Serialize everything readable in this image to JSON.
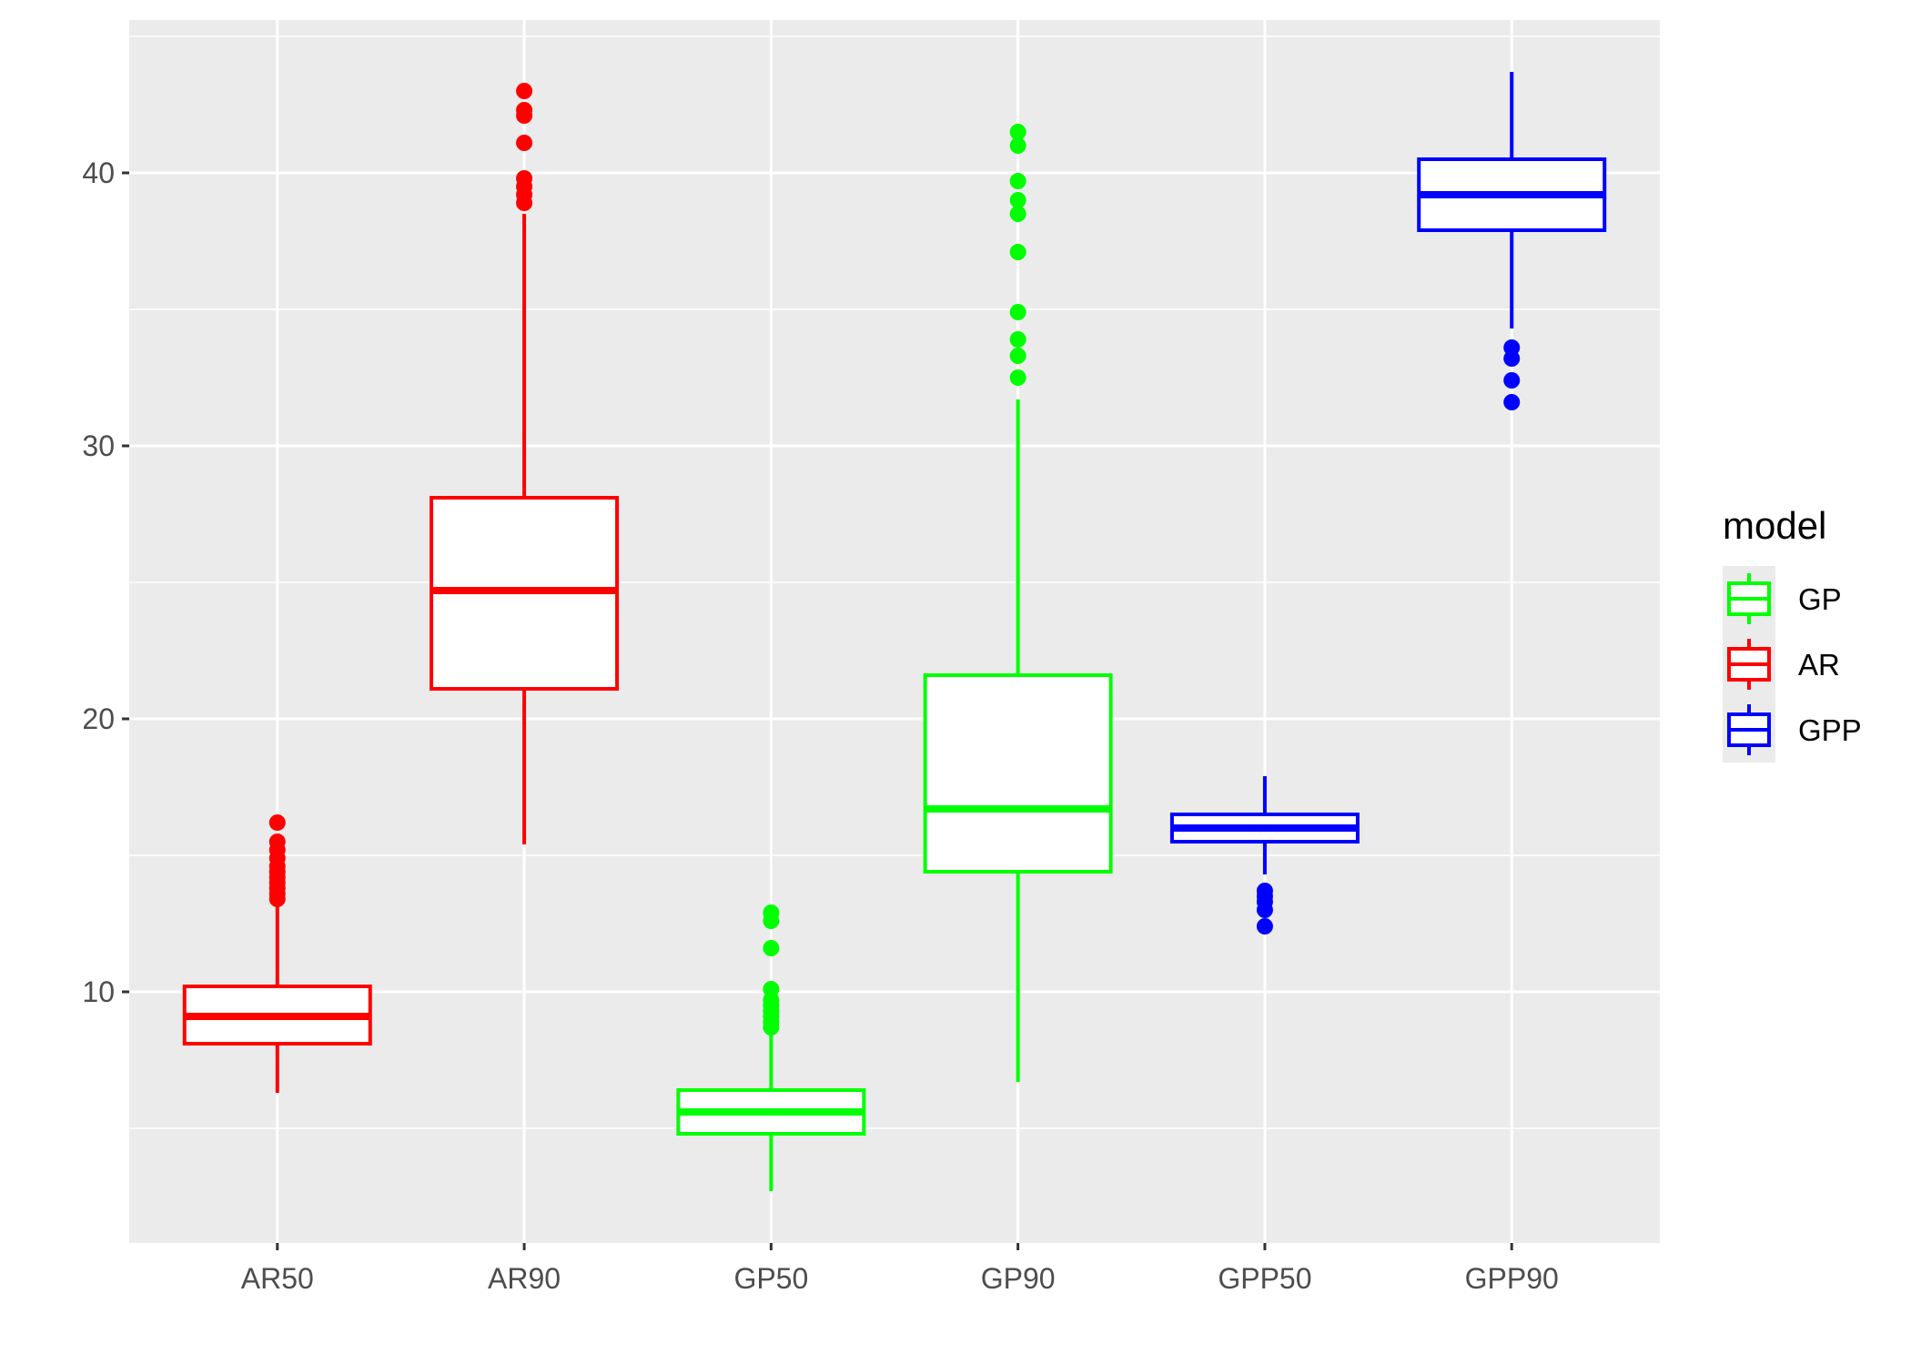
{
  "chart_data": {
    "type": "boxplot",
    "title": "",
    "xlabel": "",
    "ylabel": "",
    "ylim": [
      0.8,
      45.6
    ],
    "y_ticks": [
      10,
      20,
      30,
      40
    ],
    "y_tick_labels": [
      "10",
      "20",
      "30",
      "40"
    ],
    "categories": [
      "AR50",
      "AR90",
      "GP50",
      "GP90",
      "GPP50",
      "GPP90"
    ],
    "boxes": [
      {
        "category": "AR50",
        "model": "AR",
        "lower_whisker": 6.3,
        "q1": 8.1,
        "median": 9.1,
        "q3": 10.2,
        "upper_whisker": 13.3,
        "outliers": [
          13.4,
          13.6,
          13.8,
          14.0,
          14.2,
          14.4,
          14.6,
          14.9,
          15.2,
          15.5,
          16.2
        ]
      },
      {
        "category": "AR90",
        "model": "AR",
        "lower_whisker": 15.4,
        "q1": 21.1,
        "median": 24.7,
        "q3": 28.1,
        "upper_whisker": 38.5,
        "outliers": [
          38.9,
          39.2,
          39.5,
          39.8,
          41.1,
          42.1,
          42.3,
          43.0
        ]
      },
      {
        "category": "GP50",
        "model": "GP",
        "lower_whisker": 2.7,
        "q1": 4.8,
        "median": 5.6,
        "q3": 6.4,
        "upper_whisker": 8.6,
        "outliers": [
          8.7,
          8.9,
          9.1,
          9.3,
          9.5,
          9.7,
          10.1,
          11.6,
          12.6,
          12.9
        ]
      },
      {
        "category": "GP90",
        "model": "GP",
        "lower_whisker": 6.7,
        "q1": 14.4,
        "median": 16.7,
        "q3": 21.6,
        "upper_whisker": 31.7,
        "outliers": [
          32.5,
          33.3,
          33.9,
          34.9,
          37.1,
          38.5,
          39.0,
          39.7,
          41.0,
          41.5
        ]
      },
      {
        "category": "GPP50",
        "model": "GPP",
        "lower_whisker": 14.3,
        "q1": 15.5,
        "median": 16.0,
        "q3": 16.5,
        "upper_whisker": 17.9,
        "outliers": [
          12.4,
          13.0,
          13.3,
          13.5,
          13.7
        ]
      },
      {
        "category": "GPP90",
        "model": "GPP",
        "lower_whisker": 34.3,
        "q1": 37.9,
        "median": 39.2,
        "q3": 40.5,
        "upper_whisker": 43.7,
        "outliers": [
          31.6,
          32.4,
          33.2,
          33.6
        ]
      }
    ],
    "legend": {
      "title": "model",
      "placement": "right",
      "entries": [
        {
          "label": "GP",
          "color": "#00ff00"
        },
        {
          "label": "AR",
          "color": "#ff0000"
        },
        {
          "label": "GPP",
          "color": "#0000ff"
        }
      ]
    },
    "grid": true,
    "panel_background": "#ebebeb",
    "grid_color": "#ffffff"
  }
}
